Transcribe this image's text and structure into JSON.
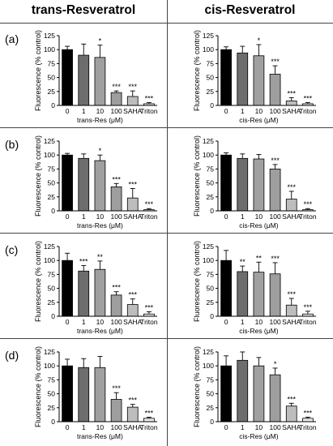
{
  "columns": [
    "trans-Resveratrol",
    "cis-Resveratrol"
  ],
  "row_labels": [
    "(a)",
    "(b)",
    "(c)",
    "(d)"
  ],
  "chart_data": [
    {
      "row": "(a)",
      "type": "bar",
      "ylabel": "Fluorescence (% control)",
      "xlabel": "trans-Res (μM)",
      "categories": [
        "0",
        "1",
        "10",
        "100",
        "SAHA",
        "Triton"
      ],
      "values": [
        100,
        90,
        86,
        23,
        16,
        3
      ],
      "errors": [
        6,
        20,
        22,
        3,
        10,
        2
      ],
      "significance": [
        "",
        "",
        "*",
        "***",
        "***",
        "***"
      ],
      "ylim": [
        0,
        125
      ],
      "yticks": [
        0,
        25,
        50,
        75,
        100,
        125
      ],
      "colors": [
        "#000000",
        "#6d6d6d",
        "#a0a0a0",
        "#9e9e9e",
        "#bdbdbd",
        "#eaeaea"
      ]
    },
    {
      "row": "(a)",
      "type": "bar",
      "ylabel": "Fluorescence (% control)",
      "xlabel": "cis-Res (μM)",
      "categories": [
        "0",
        "1",
        "10",
        "100",
        "SAHA",
        "Triton"
      ],
      "values": [
        100,
        94,
        89,
        56,
        8,
        3
      ],
      "errors": [
        5,
        12,
        20,
        15,
        6,
        2
      ],
      "significance": [
        "",
        "",
        "*",
        "***",
        "***",
        "***"
      ],
      "ylim": [
        0,
        125
      ],
      "yticks": [
        0,
        25,
        50,
        75,
        100,
        125
      ],
      "colors": [
        "#000000",
        "#6d6d6d",
        "#a0a0a0",
        "#9e9e9e",
        "#bdbdbd",
        "#eaeaea"
      ]
    },
    {
      "row": "(b)",
      "type": "bar",
      "ylabel": "Fluorescence (% control)",
      "xlabel": "trans-Res (μM)",
      "categories": [
        "0",
        "1",
        "10",
        "100",
        "SAHA",
        "Triton"
      ],
      "values": [
        100,
        94,
        90,
        43,
        23,
        2
      ],
      "errors": [
        3,
        8,
        10,
        6,
        17,
        2
      ],
      "significance": [
        "",
        "",
        "*",
        "***",
        "***",
        "***"
      ],
      "ylim": [
        0,
        125
      ],
      "yticks": [
        0,
        25,
        50,
        75,
        100,
        125
      ],
      "colors": [
        "#000000",
        "#6d6d6d",
        "#a0a0a0",
        "#9e9e9e",
        "#bdbdbd",
        "#eaeaea"
      ]
    },
    {
      "row": "(b)",
      "type": "bar",
      "ylabel": "Fluorescence (% control)",
      "xlabel": "cis-Res (μM)",
      "categories": [
        "0",
        "1",
        "10",
        "100",
        "SAHA",
        "Triton"
      ],
      "values": [
        100,
        94,
        93,
        75,
        21,
        2
      ],
      "errors": [
        4,
        8,
        8,
        8,
        14,
        2
      ],
      "significance": [
        "",
        "",
        "",
        "***",
        "***",
        "***"
      ],
      "ylim": [
        0,
        125
      ],
      "yticks": [
        0,
        25,
        50,
        75,
        100,
        125
      ],
      "colors": [
        "#000000",
        "#6d6d6d",
        "#a0a0a0",
        "#9e9e9e",
        "#bdbdbd",
        "#eaeaea"
      ]
    },
    {
      "row": "(c)",
      "type": "bar",
      "ylabel": "Fluorescence (% control)",
      "xlabel": "trans-Res (μM)",
      "categories": [
        "0",
        "1",
        "10",
        "100",
        "SAHA",
        "Triton"
      ],
      "values": [
        100,
        81,
        84,
        38,
        21,
        4
      ],
      "errors": [
        13,
        10,
        15,
        6,
        10,
        4
      ],
      "significance": [
        "",
        "***",
        "**",
        "***",
        "***",
        "***"
      ],
      "ylim": [
        0,
        125
      ],
      "yticks": [
        0,
        25,
        50,
        75,
        100,
        125
      ],
      "colors": [
        "#000000",
        "#6d6d6d",
        "#a0a0a0",
        "#9e9e9e",
        "#bdbdbd",
        "#eaeaea"
      ]
    },
    {
      "row": "(c)",
      "type": "bar",
      "ylabel": "Fluorescence (% control)",
      "xlabel": "cis-Res (μM)",
      "categories": [
        "0",
        "1",
        "10",
        "100",
        "SAHA",
        "Triton"
      ],
      "values": [
        100,
        80,
        79,
        76,
        20,
        4
      ],
      "errors": [
        18,
        10,
        18,
        20,
        12,
        5
      ],
      "significance": [
        "",
        "**",
        "**",
        "***",
        "***",
        "***"
      ],
      "ylim": [
        0,
        125
      ],
      "yticks": [
        0,
        25,
        50,
        75,
        100,
        125
      ],
      "colors": [
        "#000000",
        "#6d6d6d",
        "#a0a0a0",
        "#9e9e9e",
        "#bdbdbd",
        "#eaeaea"
      ]
    },
    {
      "row": "(d)",
      "type": "bar",
      "ylabel": "Fluorescence (% control)",
      "xlabel": "trans-Res (μM)",
      "categories": [
        "0",
        "1",
        "10",
        "100",
        "SAHA",
        "Triton"
      ],
      "values": [
        100,
        97,
        97,
        40,
        26,
        6
      ],
      "errors": [
        12,
        16,
        20,
        12,
        5,
        2
      ],
      "significance": [
        "",
        "",
        "",
        "***",
        "***",
        "***"
      ],
      "ylim": [
        0,
        125
      ],
      "yticks": [
        0,
        25,
        50,
        75,
        100,
        125
      ],
      "colors": [
        "#000000",
        "#6d6d6d",
        "#a0a0a0",
        "#9e9e9e",
        "#bdbdbd",
        "#eaeaea"
      ]
    },
    {
      "row": "(d)",
      "type": "bar",
      "ylabel": "Fluorescence (% control)",
      "xlabel": "cis-Res (μM)",
      "categories": [
        "0",
        "1",
        "10",
        "100",
        "SAHA",
        "Triton"
      ],
      "values": [
        100,
        110,
        100,
        84,
        28,
        6
      ],
      "errors": [
        18,
        15,
        15,
        12,
        5,
        2
      ],
      "significance": [
        "",
        "",
        "",
        "*",
        "***",
        "***"
      ],
      "ylim": [
        0,
        125
      ],
      "yticks": [
        0,
        25,
        50,
        75,
        100,
        125
      ],
      "colors": [
        "#000000",
        "#6d6d6d",
        "#a0a0a0",
        "#9e9e9e",
        "#bdbdbd",
        "#eaeaea"
      ]
    }
  ]
}
